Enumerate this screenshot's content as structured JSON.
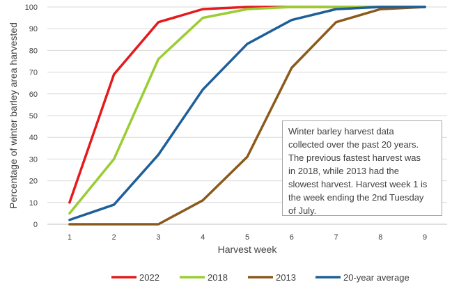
{
  "chart_data": {
    "type": "line",
    "xlabel": "Harvest week",
    "ylabel": "Percentage of winter barley area harvested",
    "x": [
      1,
      2,
      3,
      4,
      5,
      6,
      7,
      8,
      9
    ],
    "xlim": [
      0.5,
      9.5
    ],
    "ylim": [
      0,
      100
    ],
    "yticks": [
      0,
      10,
      20,
      30,
      40,
      50,
      60,
      70,
      80,
      90,
      100
    ],
    "grid": "horizontal",
    "legend_position": "bottom",
    "series": [
      {
        "name": "2022",
        "color": "#e41a1c",
        "values": [
          10,
          69,
          93,
          99,
          100,
          100,
          100,
          100,
          100
        ]
      },
      {
        "name": "2018",
        "color": "#9acd32",
        "values": [
          5,
          30,
          76,
          95,
          99,
          100,
          100,
          100,
          100
        ]
      },
      {
        "name": "2013",
        "color": "#8b5a1b",
        "values": [
          0,
          0,
          0,
          11,
          31,
          72,
          93,
          99,
          100
        ]
      },
      {
        "name": "20-year average",
        "color": "#1f5f99",
        "values": [
          2,
          9,
          32,
          62,
          83,
          94,
          99,
          100,
          100
        ]
      }
    ],
    "annotation": {
      "lines": [
        "Winter barley harvest data",
        "collected over the past 20 years.",
        "The previous fastest harvest was",
        "in 2018, while 2013 had the",
        "slowest harvest. Harvest week 1 is",
        "the week ending the 2nd Tuesday",
        "of July."
      ]
    }
  }
}
